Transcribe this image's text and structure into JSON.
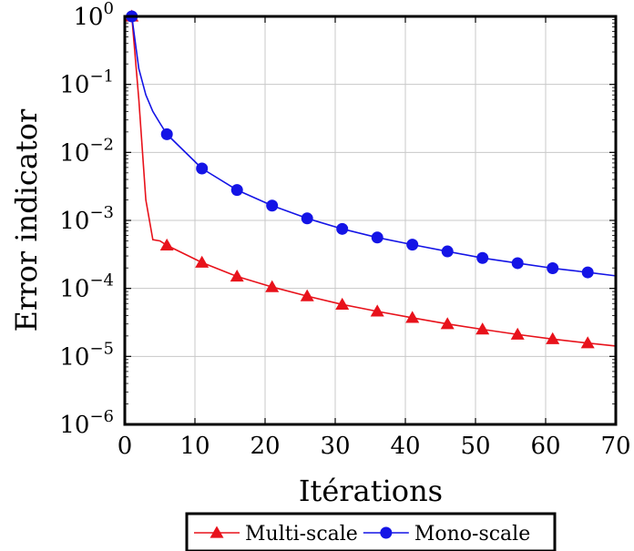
{
  "chart_data": {
    "type": "line",
    "xlabel": "Itérations",
    "ylabel": "Error indicator",
    "yscale": "log",
    "xlim": [
      0,
      70
    ],
    "ylim": [
      1e-06,
      1
    ],
    "x_ticks": [
      0,
      10,
      20,
      30,
      40,
      50,
      60,
      70
    ],
    "y_ticks": [
      {
        "value": 1,
        "mantissa": "10",
        "exponent": "0"
      },
      {
        "value": 0.1,
        "mantissa": "10",
        "exponent": "−1"
      },
      {
        "value": 0.01,
        "mantissa": "10",
        "exponent": "−2"
      },
      {
        "value": 0.001,
        "mantissa": "10",
        "exponent": "−3"
      },
      {
        "value": 0.0001,
        "mantissa": "10",
        "exponent": "−4"
      },
      {
        "value": 1e-05,
        "mantissa": "10",
        "exponent": "−5"
      },
      {
        "value": 1e-06,
        "mantissa": "10",
        "exponent": "−6"
      }
    ],
    "grid": true,
    "legend_position": "below",
    "series": [
      {
        "name": "Multi-scale",
        "color": "#e8121b",
        "marker": "triangle",
        "line": [
          [
            1,
            1
          ],
          [
            2,
            0.06
          ],
          [
            3,
            0.002
          ],
          [
            4,
            0.00052
          ],
          [
            5,
            0.0005
          ],
          [
            6,
            0.00043
          ],
          [
            11,
            0.00024
          ],
          [
            16,
            0.00015
          ],
          [
            21,
            0.000105
          ],
          [
            26,
            7.7e-05
          ],
          [
            31,
            5.8e-05
          ],
          [
            36,
            4.6e-05
          ],
          [
            41,
            3.7e-05
          ],
          [
            46,
            3e-05
          ],
          [
            51,
            2.5e-05
          ],
          [
            56,
            2.1e-05
          ],
          [
            61,
            1.8e-05
          ],
          [
            66,
            1.57e-05
          ],
          [
            70,
            1.42e-05
          ]
        ],
        "markers": [
          [
            1,
            1
          ],
          [
            6,
            0.00043
          ],
          [
            11,
            0.00024
          ],
          [
            16,
            0.00015
          ],
          [
            21,
            0.000105
          ],
          [
            26,
            7.7e-05
          ],
          [
            31,
            5.8e-05
          ],
          [
            36,
            4.6e-05
          ],
          [
            41,
            3.7e-05
          ],
          [
            46,
            3e-05
          ],
          [
            51,
            2.5e-05
          ],
          [
            56,
            2.1e-05
          ],
          [
            61,
            1.8e-05
          ],
          [
            66,
            1.57e-05
          ]
        ]
      },
      {
        "name": "Mono-scale",
        "color": "#1414e6",
        "marker": "circle",
        "line": [
          [
            1,
            1
          ],
          [
            2,
            0.17
          ],
          [
            3,
            0.07
          ],
          [
            4,
            0.04
          ],
          [
            5,
            0.027
          ],
          [
            6,
            0.0185
          ],
          [
            11,
            0.0058
          ],
          [
            16,
            0.0028
          ],
          [
            21,
            0.00165
          ],
          [
            26,
            0.00107
          ],
          [
            31,
            0.00075
          ],
          [
            36,
            0.00056
          ],
          [
            41,
            0.00044
          ],
          [
            46,
            0.00035
          ],
          [
            51,
            0.00028
          ],
          [
            56,
            0.000235
          ],
          [
            61,
            0.000198
          ],
          [
            66,
            0.000172
          ],
          [
            70,
            0.000153
          ]
        ],
        "markers": [
          [
            1,
            1
          ],
          [
            6,
            0.0185
          ],
          [
            11,
            0.0058
          ],
          [
            16,
            0.0028
          ],
          [
            21,
            0.00165
          ],
          [
            26,
            0.00107
          ],
          [
            31,
            0.00075
          ],
          [
            36,
            0.00056
          ],
          [
            41,
            0.00044
          ],
          [
            46,
            0.00035
          ],
          [
            51,
            0.00028
          ],
          [
            56,
            0.000235
          ],
          [
            61,
            0.000198
          ],
          [
            66,
            0.000172
          ]
        ]
      }
    ]
  }
}
